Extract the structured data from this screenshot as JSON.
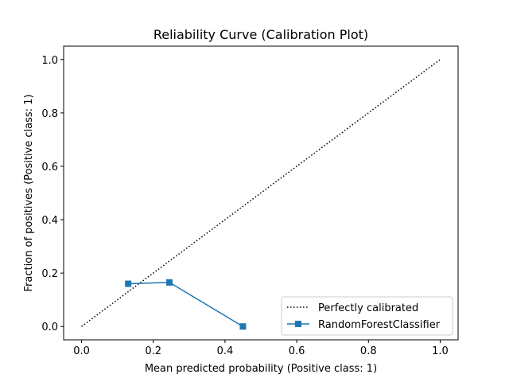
{
  "chart_data": {
    "type": "line",
    "title": "Reliability Curve (Calibration Plot)",
    "xlabel": "Mean predicted probability (Positive class: 1)",
    "ylabel": "Fraction of positives (Positive class: 1)",
    "xlim": [
      -0.05,
      1.05
    ],
    "ylim": [
      -0.05,
      1.05
    ],
    "xticks": [
      0.0,
      0.2,
      0.4,
      0.6,
      0.8,
      1.0
    ],
    "yticks": [
      0.0,
      0.2,
      0.4,
      0.6,
      0.8,
      1.0
    ],
    "xtick_labels": [
      "0.0",
      "0.2",
      "0.4",
      "0.6",
      "0.8",
      "1.0"
    ],
    "ytick_labels": [
      "0.0",
      "0.2",
      "0.4",
      "0.6",
      "0.8",
      "1.0"
    ],
    "grid": false,
    "legend_position": "lower-right",
    "series": [
      {
        "name": "Perfectly calibrated",
        "style": "dotted",
        "color": "#000000",
        "x": [
          0.0,
          1.0
        ],
        "y": [
          0.0,
          1.0
        ]
      },
      {
        "name": "RandomForestClassifier",
        "style": "solid",
        "marker": "square",
        "color": "#1f77b4",
        "x": [
          0.13,
          0.245,
          0.45
        ],
        "y": [
          0.16,
          0.165,
          0.0
        ]
      }
    ]
  }
}
